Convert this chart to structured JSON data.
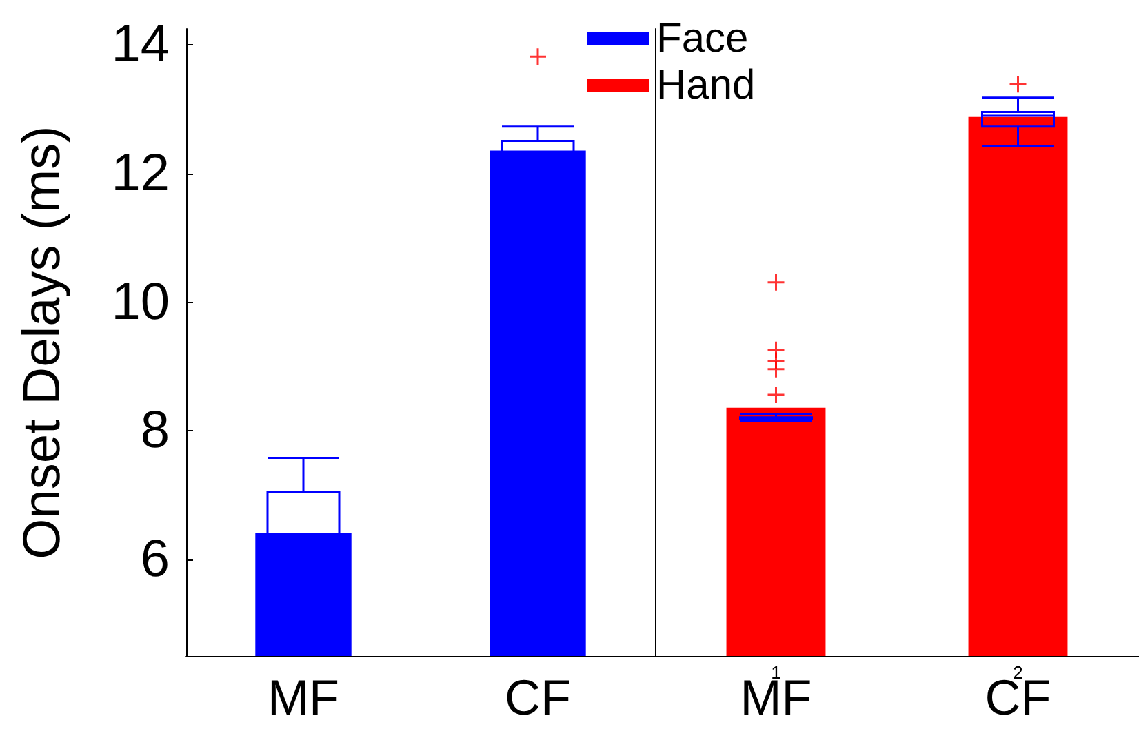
{
  "chart_data": [
    {
      "type": "bar",
      "ylabel": "Onset Delays (ms)",
      "categories": [
        "MF",
        "CF"
      ],
      "ylim": [
        4.5,
        14.25
      ],
      "yticks": [
        6,
        8,
        10,
        12,
        14
      ],
      "grid": false,
      "legend": "top right",
      "series": [
        {
          "name": "Face",
          "color": "#0000ff",
          "values": [
            6.41,
            12.36
          ]
        },
        {
          "type": "box",
          "color": "#0000ff",
          "boxes": [
            {
              "low": 4.95,
              "q1": 5.87,
              "median": 6.36,
              "q3": 7.05,
              "high": 7.58
            },
            {
              "low": 11.87,
              "q1": 12.13,
              "median": 12.32,
              "q3": 12.51,
              "high": 12.73
            }
          ]
        },
        {
          "type": "scatter",
          "color": "#ff0000",
          "marker": "cross",
          "x": [
            "CF"
          ],
          "values": [
            13.82
          ]
        }
      ]
    },
    {
      "type": "bar",
      "categories": [
        "MF",
        "CF"
      ],
      "ylim": [
        4.5,
        14.25
      ],
      "grid": false,
      "legend": "top left",
      "tick_labels": "x",
      "annotations": [
        "1",
        "2"
      ],
      "series": [
        {
          "name": "Hand",
          "color": "#ff0000",
          "values": [
            8.36,
            12.88
          ]
        },
        {
          "type": "box",
          "color": "#0000ff",
          "boxes": [
            {
              "low": 8.15,
              "q1": 8.18,
              "median": 8.19,
              "q3": 8.21,
              "high": 8.26
            },
            {
              "low": 12.43,
              "q1": 12.73,
              "median": 12.9,
              "q3": 12.96,
              "high": 13.18
            }
          ]
        },
        {
          "type": "scatter",
          "color": "#ff0000",
          "marker": "cross",
          "x": [
            "MF",
            "MF",
            "MF",
            "MF",
            "MF",
            "CF"
          ],
          "values": [
            10.31,
            9.26,
            9.09,
            8.96,
            8.56,
            13.39
          ]
        }
      ]
    }
  ]
}
